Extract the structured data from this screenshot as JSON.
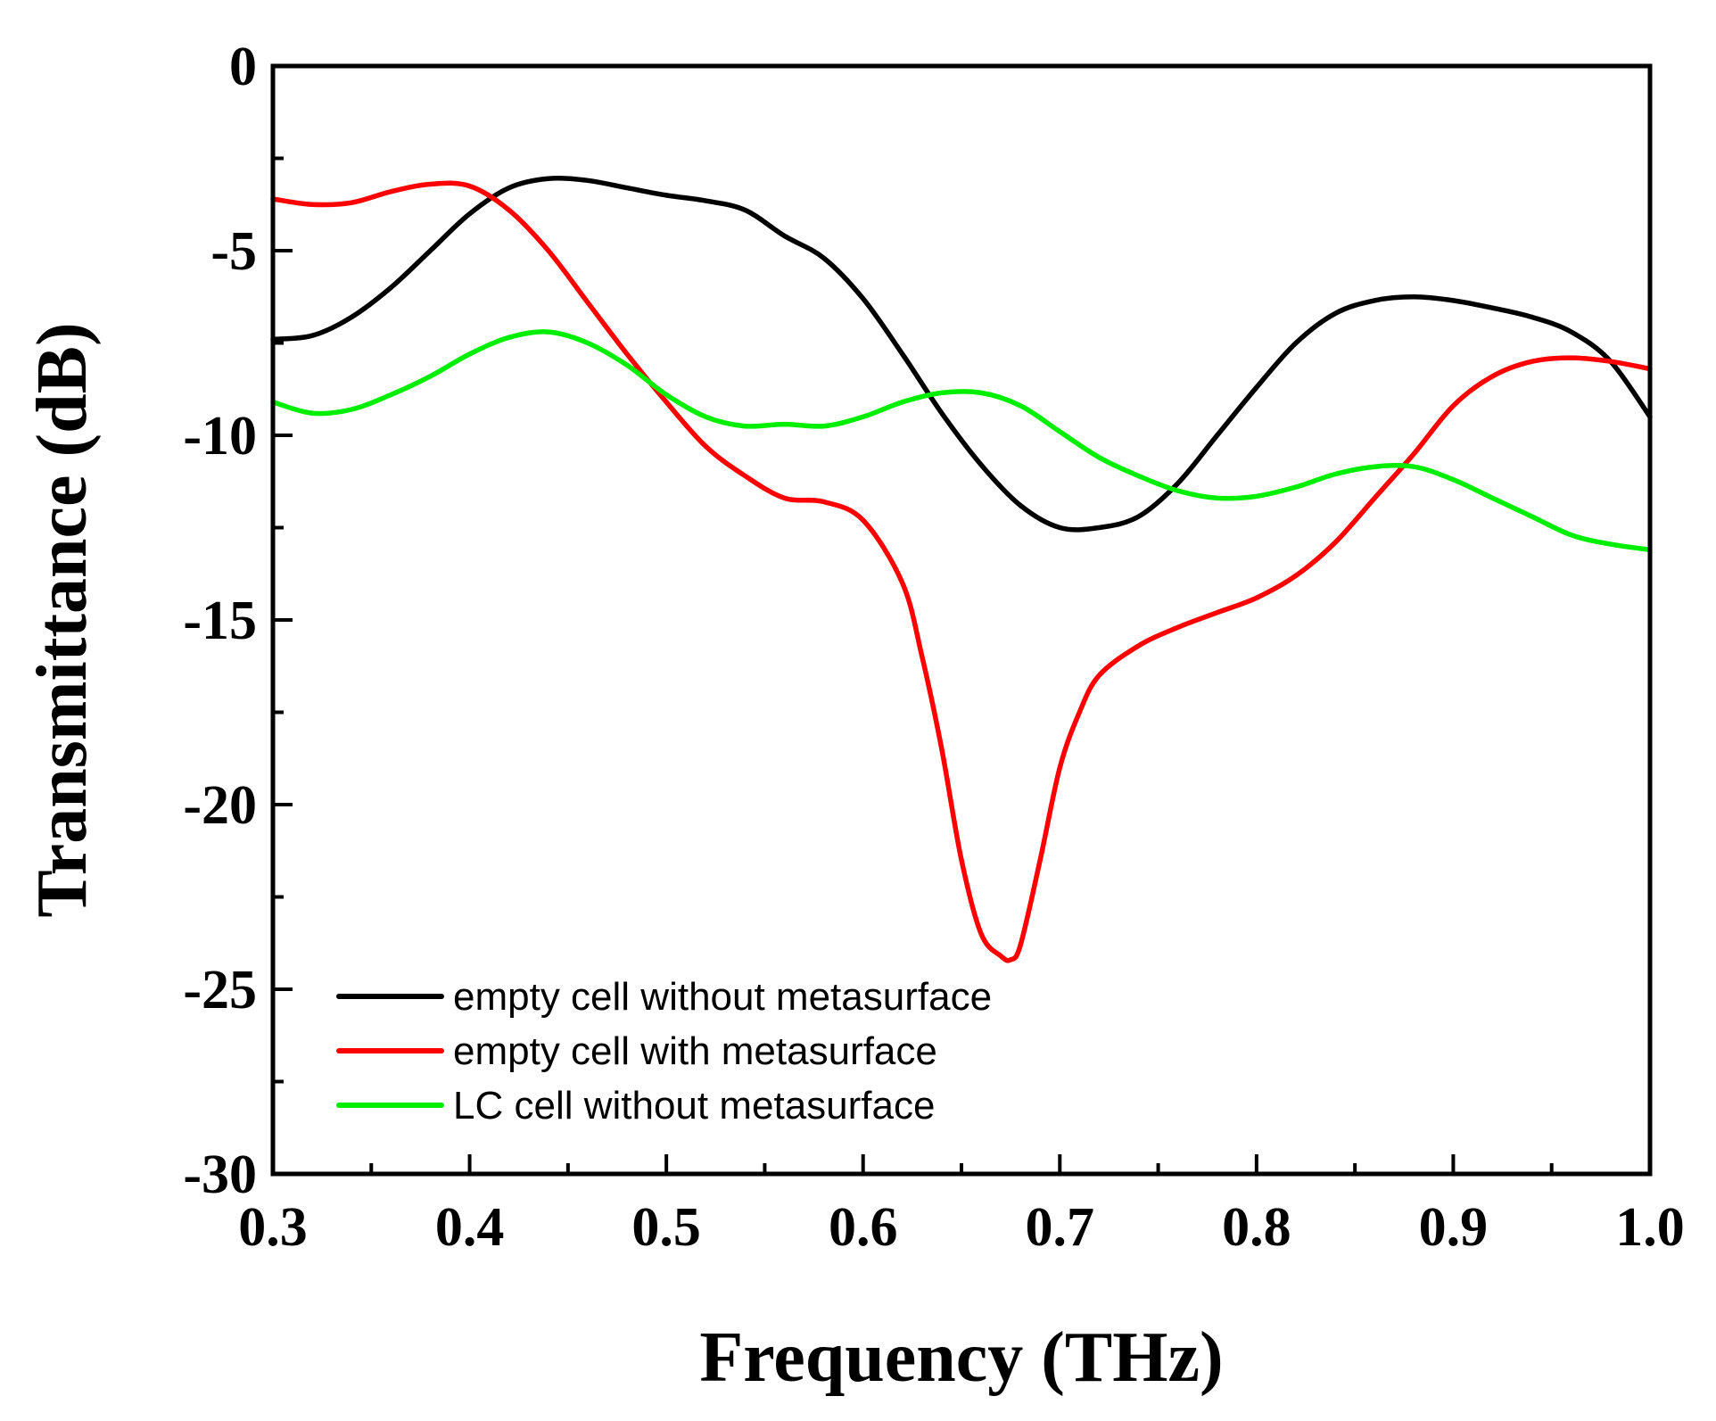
{
  "chart_data": {
    "type": "line",
    "title": "",
    "xlabel": "Frequency (THz)",
    "ylabel": "Transmittance (dB)",
    "xlim": [
      0.3,
      1.0
    ],
    "ylim": [
      -30,
      0
    ],
    "xticks": [
      0.3,
      0.4,
      0.5,
      0.6,
      0.7,
      0.8,
      0.9,
      1.0
    ],
    "xtick_labels": [
      "0.3",
      "0.4",
      "0.5",
      "0.6",
      "0.7",
      "0.8",
      "0.9",
      "1.0"
    ],
    "yticks": [
      0,
      -5,
      -10,
      -15,
      -20,
      -25,
      -30
    ],
    "ytick_labels": [
      "0",
      "-5",
      "-10",
      "-15",
      "-20",
      "-25",
      "-30"
    ],
    "x_minor_step": 0.05,
    "y_minor_step": 2.5,
    "grid": false,
    "legend_position": "bottom-left",
    "series": [
      {
        "name": "empty cell without metasurface",
        "color": "#000000",
        "x": [
          0.3,
          0.32,
          0.34,
          0.36,
          0.38,
          0.4,
          0.42,
          0.44,
          0.46,
          0.48,
          0.5,
          0.52,
          0.54,
          0.56,
          0.58,
          0.6,
          0.62,
          0.64,
          0.66,
          0.68,
          0.7,
          0.72,
          0.74,
          0.76,
          0.78,
          0.8,
          0.82,
          0.84,
          0.86,
          0.88,
          0.9,
          0.92,
          0.94,
          0.96,
          0.98,
          1.0
        ],
        "y": [
          -7.4,
          -7.3,
          -6.8,
          -6.0,
          -5.0,
          -4.0,
          -3.3,
          -3.05,
          -3.1,
          -3.3,
          -3.5,
          -3.65,
          -3.9,
          -4.6,
          -5.2,
          -6.3,
          -7.8,
          -9.4,
          -10.8,
          -11.9,
          -12.5,
          -12.5,
          -12.2,
          -11.3,
          -10.0,
          -8.7,
          -7.5,
          -6.7,
          -6.35,
          -6.25,
          -6.35,
          -6.55,
          -6.8,
          -7.2,
          -8.0,
          -9.5
        ]
      },
      {
        "name": "empty cell with metasurface",
        "color": "#ff0000",
        "x": [
          0.3,
          0.32,
          0.34,
          0.36,
          0.38,
          0.4,
          0.42,
          0.44,
          0.46,
          0.48,
          0.5,
          0.52,
          0.54,
          0.56,
          0.58,
          0.6,
          0.62,
          0.63,
          0.64,
          0.65,
          0.66,
          0.67,
          0.675,
          0.68,
          0.69,
          0.7,
          0.71,
          0.72,
          0.74,
          0.76,
          0.78,
          0.8,
          0.82,
          0.84,
          0.86,
          0.88,
          0.9,
          0.92,
          0.94,
          0.96,
          0.98,
          1.0
        ],
        "y": [
          -3.6,
          -3.75,
          -3.7,
          -3.4,
          -3.2,
          -3.25,
          -3.9,
          -5.0,
          -6.4,
          -7.8,
          -9.1,
          -10.3,
          -11.1,
          -11.7,
          -11.8,
          -12.3,
          -14.0,
          -16.0,
          -18.5,
          -21.5,
          -23.5,
          -24.1,
          -24.2,
          -23.8,
          -21.5,
          -19.0,
          -17.5,
          -16.5,
          -15.7,
          -15.2,
          -14.8,
          -14.4,
          -13.8,
          -12.9,
          -11.7,
          -10.5,
          -9.2,
          -8.4,
          -8.0,
          -7.9,
          -8.0,
          -8.2
        ]
      },
      {
        "name": "LC cell without metasurface",
        "color": "#00ee00",
        "x": [
          0.3,
          0.32,
          0.34,
          0.36,
          0.38,
          0.4,
          0.42,
          0.44,
          0.46,
          0.48,
          0.5,
          0.52,
          0.54,
          0.56,
          0.58,
          0.6,
          0.62,
          0.64,
          0.66,
          0.68,
          0.7,
          0.72,
          0.74,
          0.76,
          0.78,
          0.8,
          0.82,
          0.84,
          0.86,
          0.88,
          0.9,
          0.92,
          0.94,
          0.96,
          0.98,
          1.0
        ],
        "y": [
          -9.1,
          -9.4,
          -9.3,
          -8.9,
          -8.4,
          -7.8,
          -7.35,
          -7.2,
          -7.5,
          -8.1,
          -8.9,
          -9.5,
          -9.75,
          -9.7,
          -9.75,
          -9.5,
          -9.1,
          -8.85,
          -8.85,
          -9.2,
          -9.9,
          -10.6,
          -11.1,
          -11.5,
          -11.7,
          -11.65,
          -11.4,
          -11.05,
          -10.85,
          -10.85,
          -11.2,
          -11.7,
          -12.2,
          -12.7,
          -12.95,
          -13.1
        ]
      }
    ]
  }
}
